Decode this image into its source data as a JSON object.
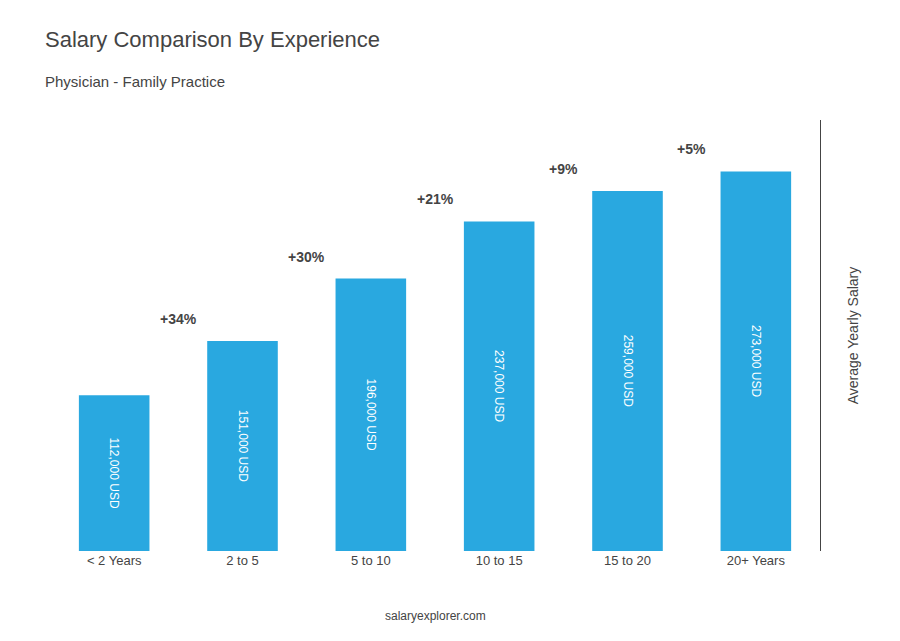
{
  "chart_data": {
    "type": "bar",
    "title": "Salary Comparison By Experience",
    "subtitle": "Physician - Family Practice",
    "categories": [
      "< 2 Years",
      "2 to 5",
      "5 to 10",
      "10 to 15",
      "15 to 20",
      "20+ Years"
    ],
    "values": [
      112000,
      151000,
      196000,
      237000,
      259000,
      273000
    ],
    "value_labels": [
      "112,000 USD",
      "151,000 USD",
      "196,000 USD",
      "237,000 USD",
      "259,000 USD",
      "273,000 USD"
    ],
    "data_labels": true,
    "color": "#29a8e0",
    "ylabel": "Average Yearly Salary",
    "ylim": [
      0,
      310000
    ],
    "tick_labels": "x",
    "grid": false,
    "annotations": [
      "+34%",
      "+30%",
      "+21%",
      "+9%",
      "+5%"
    ],
    "footer": "salaryexplorer.com"
  }
}
